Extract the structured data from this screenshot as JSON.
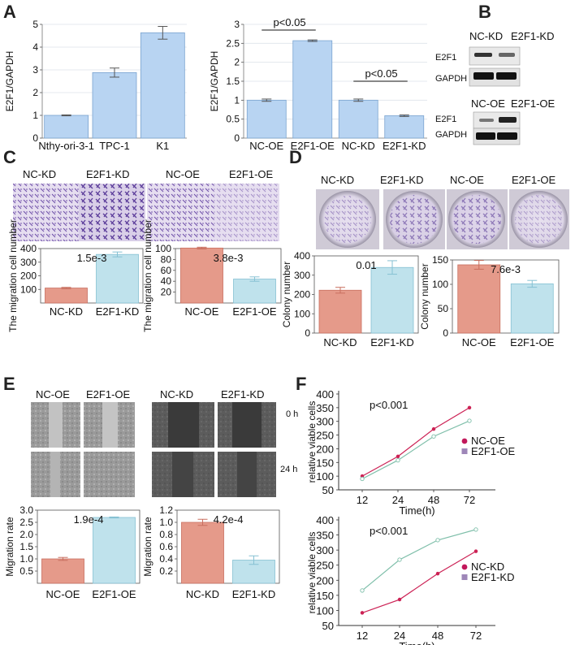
{
  "panel_labels": [
    "A",
    "B",
    "C",
    "D",
    "E",
    "F"
  ],
  "colors": {
    "bar_blue": "#b8d4f2",
    "bar_blue_edge": "#7aa3cf",
    "bar_red": "#e59a8a",
    "bar_red_edge": "#c86f5f",
    "bar_cyan": "#bfe2ec",
    "bar_cyan_edge": "#86c1d3",
    "line_red": "#cc2255",
    "line_green": "#7fbfaa",
    "legend_red": "#c2185b",
    "legend_purple": "#9e86b8"
  },
  "blots": {
    "kd": {
      "headers": [
        "NC-KD",
        "E2F1-KD"
      ],
      "rows": [
        "E2F1",
        "GAPDH"
      ]
    },
    "oe": {
      "headers": [
        "NC-OE",
        "E2F1-OE"
      ],
      "rows": [
        "E2F1",
        "GAPDH"
      ]
    }
  },
  "transwell_headers": [
    "NC-KD",
    "E2F1-KD",
    "NC-OE",
    "E2F1-OE"
  ],
  "colony_headers": [
    "NC-KD",
    "E2F1-KD",
    "NC-OE",
    "E2F1-OE"
  ],
  "wound": {
    "headers": [
      "NC-OE",
      "E2F1-OE",
      "NC-KD",
      "E2F1-KD"
    ],
    "times": [
      "0 h",
      "24 h"
    ]
  },
  "chart_data": [
    {
      "id": "A1",
      "type": "bar",
      "categories": [
        "Nthy-ori-3-1",
        "TPC-1",
        "K1"
      ],
      "values": [
        1.0,
        2.88,
        4.63
      ],
      "errors": [
        0.02,
        0.2,
        0.28
      ],
      "ylabel": "E2F1/GAPDH",
      "ylim": [
        0,
        5
      ],
      "yticks": [
        0,
        1,
        2,
        3,
        4,
        5
      ]
    },
    {
      "id": "A2",
      "type": "bar",
      "categories": [
        "NC-OE",
        "E2F1-OE",
        "NC-KD",
        "E2F1-KD"
      ],
      "values": [
        1.0,
        2.57,
        1.0,
        0.59
      ],
      "errors": [
        0.03,
        0.02,
        0.03,
        0.02
      ],
      "ylabel": "E2F1/GAPDH",
      "ylim": [
        0,
        3
      ],
      "yticks": [
        0,
        0.5,
        1,
        1.5,
        2,
        2.5,
        3
      ],
      "annotations": [
        "p<0.05",
        "p<0.05"
      ]
    },
    {
      "id": "C1",
      "type": "bar",
      "categories": [
        "NC-KD",
        "E2F1-KD"
      ],
      "values": [
        110,
        357
      ],
      "errors": [
        5,
        18
      ],
      "ylabel": "The migration cell number",
      "ylim": [
        0,
        400
      ],
      "yticks": [
        100,
        200,
        300,
        400
      ],
      "annotation": "1.5e-3"
    },
    {
      "id": "C2",
      "type": "bar",
      "categories": [
        "NC-OE",
        "E2F1-OE"
      ],
      "values": [
        101,
        44
      ],
      "errors": [
        1.5,
        4
      ],
      "ylabel": "The migration cell number",
      "ylim": [
        0,
        100
      ],
      "yticks": [
        20,
        40,
        60,
        80,
        100
      ],
      "annotation": "3.8e-3"
    },
    {
      "id": "D1",
      "type": "bar",
      "categories": [
        "NC-KD",
        "E2F1-KD"
      ],
      "values": [
        222,
        340
      ],
      "errors": [
        15,
        35
      ],
      "ylabel": "Colony number",
      "ylim": [
        0,
        400
      ],
      "yticks": [
        0,
        100,
        200,
        300,
        400
      ],
      "annotation": "0.01"
    },
    {
      "id": "D2",
      "type": "bar",
      "categories": [
        "NC-OE",
        "E2F1-OE"
      ],
      "values": [
        140,
        101
      ],
      "errors": [
        9,
        7
      ],
      "ylabel": "Colony number",
      "ylim": [
        0,
        150
      ],
      "yticks": [
        0,
        50,
        100,
        150
      ],
      "annotation": "7.6e-3"
    },
    {
      "id": "E1",
      "type": "bar",
      "categories": [
        "NC-OE",
        "E2F1-OE"
      ],
      "values": [
        1.0,
        2.7
      ],
      "errors": [
        0.06,
        0.02
      ],
      "ylabel": "Migration rate",
      "ylim": [
        0,
        3
      ],
      "yticks": [
        0.5,
        1.0,
        1.5,
        2.0,
        2.5,
        3.0
      ],
      "annotation": "1.9e-4"
    },
    {
      "id": "E2",
      "type": "bar",
      "categories": [
        "NC-KD",
        "E2F1-KD"
      ],
      "values": [
        1.0,
        0.38
      ],
      "errors": [
        0.05,
        0.07
      ],
      "ylabel": "Migration rate",
      "ylim": [
        0,
        1.2
      ],
      "yticks": [
        0.2,
        0.4,
        0.6,
        0.8,
        1.0,
        1.2
      ],
      "annotation": "4.2e-4"
    },
    {
      "id": "F1",
      "type": "line",
      "x": [
        "12",
        "24",
        "48",
        "72"
      ],
      "series": [
        {
          "name": "NC-OE",
          "values": [
            100,
            172,
            272,
            350
          ]
        },
        {
          "name": "E2F1-OE",
          "values": [
            90,
            158,
            245,
            302
          ]
        }
      ],
      "xlabel": "Time(h)",
      "ylabel": "relative viable cells",
      "ylim": [
        50,
        400
      ],
      "yticks": [
        50,
        100,
        150,
        200,
        250,
        300,
        350,
        400
      ],
      "annotation": "p<0.001"
    },
    {
      "id": "F2",
      "type": "line",
      "x": [
        "12",
        "24",
        "48",
        "72"
      ],
      "series": [
        {
          "name": "NC-KD",
          "values": [
            92,
            136,
            222,
            296
          ]
        },
        {
          "name": "E2F1-KD",
          "values": [
            166,
            268,
            333,
            368
          ]
        }
      ],
      "xlabel": "Time(h)",
      "ylabel": "relative viable cells",
      "ylim": [
        50,
        400
      ],
      "yticks": [
        50,
        100,
        150,
        200,
        250,
        300,
        350,
        400
      ],
      "annotation": "p<0.001"
    }
  ]
}
